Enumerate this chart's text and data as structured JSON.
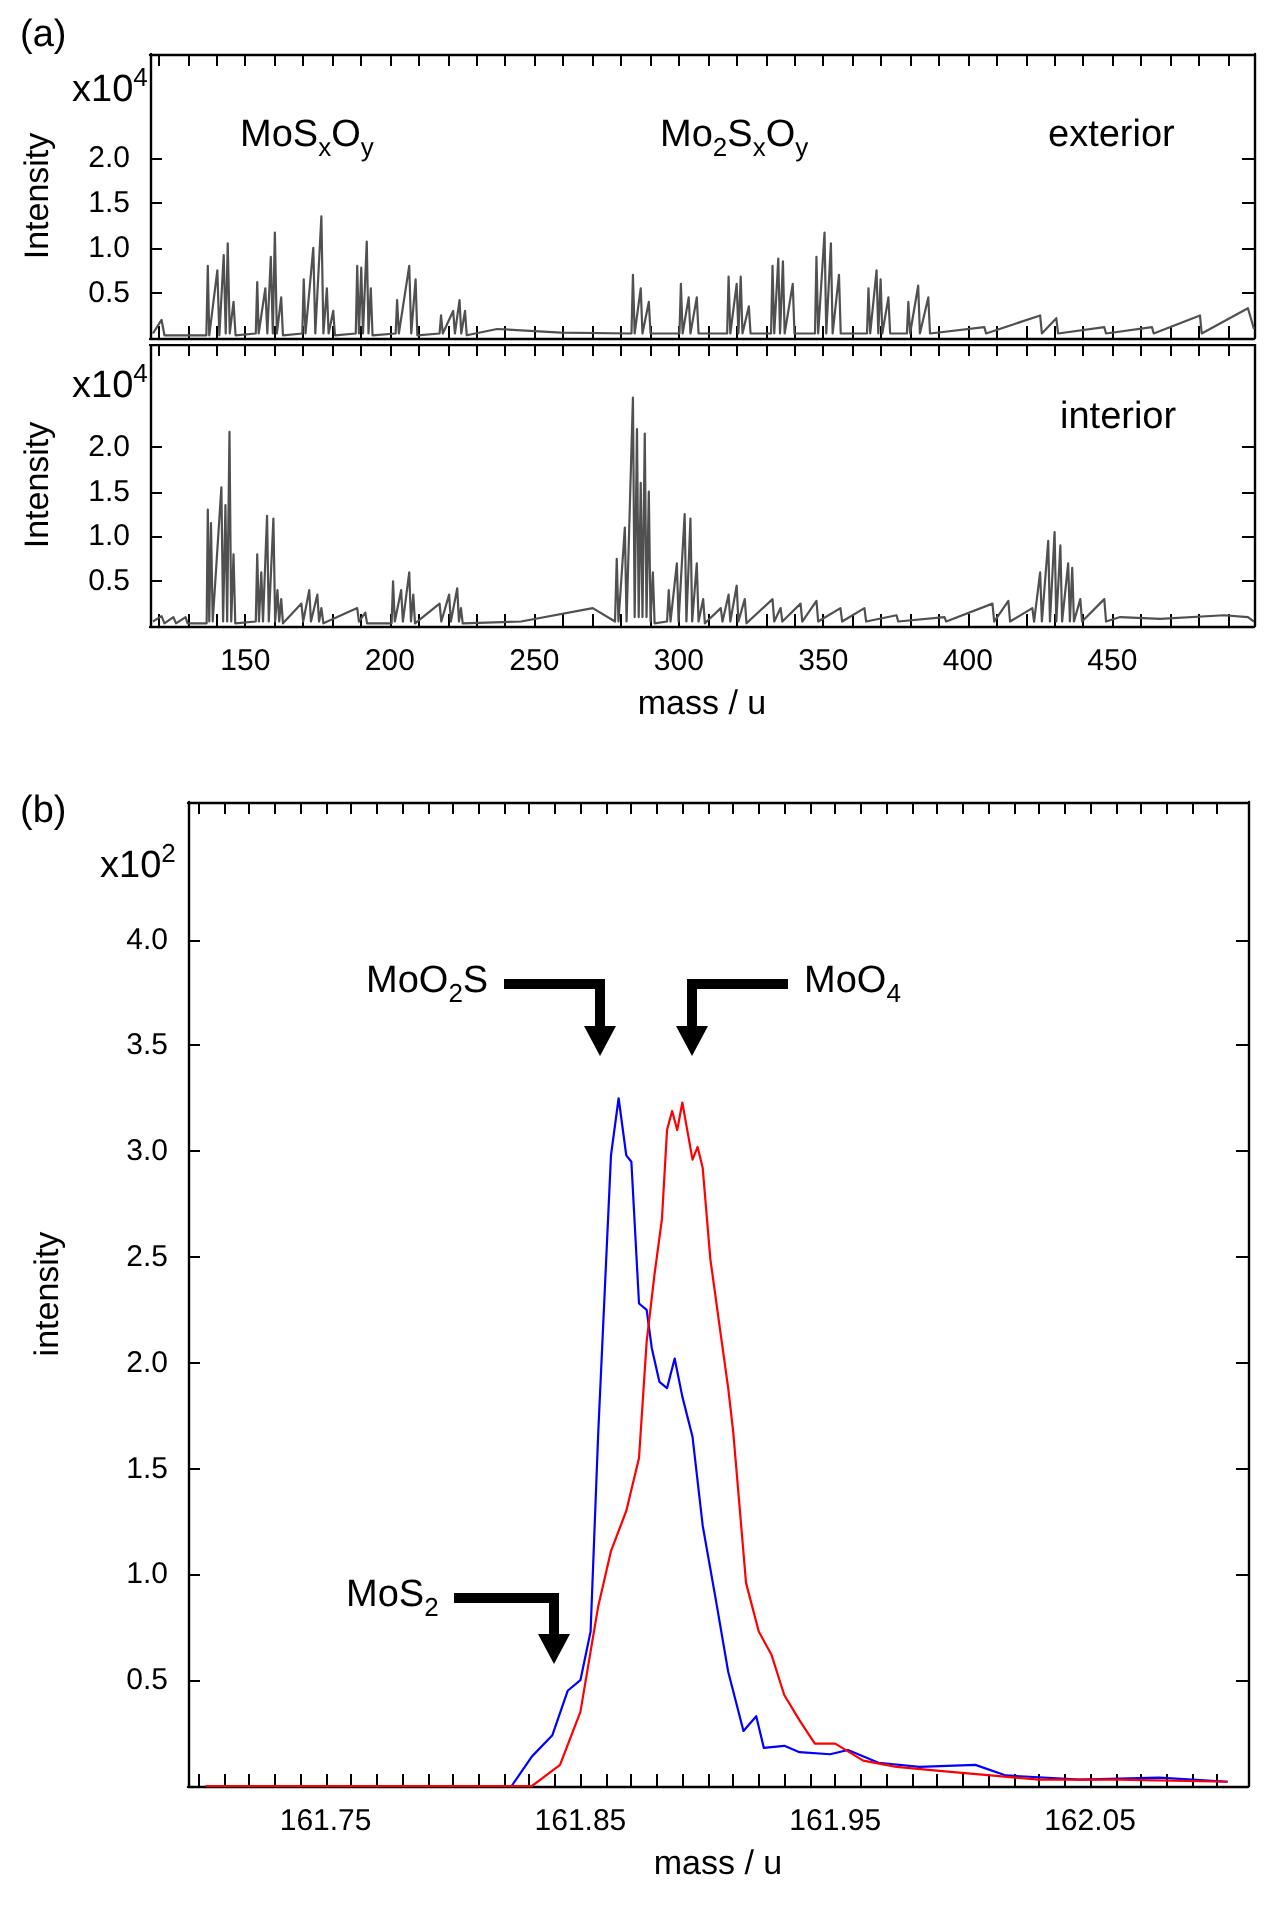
{
  "chart_data": [
    {
      "type": "line",
      "ylabel": "Intensity",
      "tick_labels": "y",
      "xlim": [
        117,
        499
      ],
      "ylim": [
        0,
        3.15
      ],
      "xticks": [
        {
          "value": 120,
          "label": null
        },
        {
          "value": 130,
          "label": null
        },
        {
          "value": 140,
          "label": null
        },
        150,
        {
          "value": 160,
          "label": null
        },
        {
          "value": 170,
          "label": null
        },
        {
          "value": 180,
          "label": null
        },
        {
          "value": 190,
          "label": null
        },
        200,
        {
          "value": 210,
          "label": null
        },
        {
          "value": 220,
          "label": null
        },
        {
          "value": 230,
          "label": null
        },
        {
          "value": 240,
          "label": null
        },
        250,
        {
          "value": 260,
          "label": null
        },
        {
          "value": 270,
          "label": null
        },
        {
          "value": 280,
          "label": null
        },
        {
          "value": 290,
          "label": null
        },
        300,
        {
          "value": 310,
          "label": null
        },
        {
          "value": 320,
          "label": null
        },
        {
          "value": 330,
          "label": null
        },
        {
          "value": 340,
          "label": null
        },
        350,
        {
          "value": 360,
          "label": null
        },
        {
          "value": 370,
          "label": null
        },
        {
          "value": 380,
          "label": null
        },
        {
          "value": 390,
          "label": null
        },
        400,
        {
          "value": 410,
          "label": null
        },
        {
          "value": 420,
          "label": null
        },
        {
          "value": 430,
          "label": null
        },
        {
          "value": 440,
          "label": null
        },
        450,
        {
          "value": 460,
          "label": null
        },
        {
          "value": 470,
          "label": null
        },
        {
          "value": 480,
          "label": null
        },
        {
          "value": 490,
          "label": null
        }
      ],
      "yticks": [
        0.5,
        {
          "value": 1,
          "label": "1.0"
        },
        1.5,
        {
          "value": 2,
          "label": "2.0"
        }
      ],
      "annotations": [
        "(a)",
        "x10$^{4}$",
        "exterior",
        "MoS$_{x}$O$_{y}$",
        "Mo$_{2}$S$_{x}$O$_{y}$"
      ],
      "series": [
        {
          "color": "#505050",
          "x": [
            118,
            121,
            122,
            136.5,
            137,
            137.5,
            140.3,
            141,
            142.5,
            143.2,
            143.9,
            144.6,
            145.9,
            146.6,
            153.6,
            154.1,
            154.6,
            156.9,
            157.6,
            158.8,
            159.5,
            160.2,
            160.9,
            162.4,
            163,
            169.7,
            170.2,
            170.8,
            173.5,
            174.2,
            176.3,
            177,
            178.2,
            178.8,
            180.4,
            181,
            188.2,
            188.7,
            189.3,
            190.1,
            190.7,
            192,
            192.6,
            193.4,
            194,
            202,
            202.5,
            203.1,
            206.7,
            207.4,
            208.9,
            209.5,
            217.2,
            217.7,
            218.3,
            221.9,
            222.5,
            224.1,
            224.7,
            226,
            226.6,
            237.1,
            259.2,
            283.6,
            284.1,
            284.7,
            286.8,
            287.4,
            289.6,
            290.2,
            300.2,
            300.7,
            301.3,
            303.4,
            304,
            306.2,
            306.8,
            316.7,
            317.2,
            317.8,
            320,
            320.6,
            321.4,
            322,
            324.2,
            324.8,
            331.9,
            332.4,
            333,
            334.4,
            335,
            336,
            336.6,
            339.4,
            340,
            347.1,
            347.6,
            348.2,
            350.4,
            351,
            352.6,
            353.2,
            355.4,
            356,
            365.1,
            365.6,
            366.2,
            368.4,
            369,
            369.8,
            370.4,
            372.5,
            373.1,
            378.9,
            379.4,
            380,
            382.8,
            383.4,
            386.3,
            386.9,
            405.7,
            406.3,
            425,
            425.6,
            430.6,
            431.2,
            447.2,
            447.8,
            463.7,
            464.3,
            480.3,
            480.9,
            496.9,
            499
          ],
          "values": [
            0.05,
            0.2,
            0.03,
            0.03,
            0.8,
            0.03,
            0.75,
            0.03,
            0.92,
            0.05,
            1.05,
            0.05,
            0.4,
            0.03,
            0.05,
            0.62,
            0.05,
            0.55,
            0.05,
            0.9,
            0.05,
            1.17,
            0.05,
            0.45,
            0.03,
            0.05,
            0.65,
            0.05,
            1,
            0.05,
            1.35,
            0.05,
            0.55,
            0.05,
            0.3,
            0.03,
            0.05,
            0.8,
            0.05,
            0.78,
            0.05,
            1.07,
            0.05,
            0.55,
            0.03,
            0.05,
            0.42,
            0.05,
            0.8,
            0.05,
            0.65,
            0.03,
            0.05,
            0.25,
            0.05,
            0.3,
            0.05,
            0.42,
            0.05,
            0.3,
            0.03,
            0.1,
            0.06,
            0.05,
            0.7,
            0.05,
            0.55,
            0.05,
            0.4,
            0.05,
            0.05,
            0.6,
            0.05,
            0.45,
            0.05,
            0.45,
            0.05,
            0.05,
            0.68,
            0.05,
            0.6,
            0.05,
            0.68,
            0.05,
            0.35,
            0.05,
            0.05,
            0.8,
            0.05,
            0.88,
            0.05,
            0.85,
            0.05,
            0.6,
            0.05,
            0.05,
            0.9,
            0.05,
            1.17,
            0.05,
            1.05,
            0.05,
            0.7,
            0.05,
            0.05,
            0.55,
            0.05,
            0.75,
            0.05,
            0.65,
            0.05,
            0.45,
            0.05,
            0.05,
            0.4,
            0.05,
            0.58,
            0.05,
            0.45,
            0.05,
            0.12,
            0.05,
            0.25,
            0.05,
            0.22,
            0.05,
            0.12,
            0.05,
            0.12,
            0.05,
            0.25,
            0.05,
            0.33,
            0.1
          ]
        }
      ]
    },
    {
      "type": "line",
      "ylabel": "Intensity",
      "xlabel": "mass / u",
      "xlim": [
        117,
        499
      ],
      "ylim": [
        0,
        3.15
      ],
      "xticks": [
        {
          "value": 120,
          "label": null
        },
        {
          "value": 130,
          "label": null
        },
        {
          "value": 140,
          "label": null
        },
        150,
        {
          "value": 160,
          "label": null
        },
        {
          "value": 170,
          "label": null
        },
        {
          "value": 180,
          "label": null
        },
        {
          "value": 190,
          "label": null
        },
        200,
        {
          "value": 210,
          "label": null
        },
        {
          "value": 220,
          "label": null
        },
        {
          "value": 230,
          "label": null
        },
        {
          "value": 240,
          "label": null
        },
        250,
        {
          "value": 260,
          "label": null
        },
        {
          "value": 270,
          "label": null
        },
        {
          "value": 280,
          "label": null
        },
        {
          "value": 290,
          "label": null
        },
        300,
        {
          "value": 310,
          "label": null
        },
        {
          "value": 320,
          "label": null
        },
        {
          "value": 330,
          "label": null
        },
        {
          "value": 340,
          "label": null
        },
        350,
        {
          "value": 360,
          "label": null
        },
        {
          "value": 370,
          "label": null
        },
        {
          "value": 380,
          "label": null
        },
        {
          "value": 390,
          "label": null
        },
        400,
        {
          "value": 410,
          "label": null
        },
        {
          "value": 420,
          "label": null
        },
        {
          "value": 430,
          "label": null
        },
        {
          "value": 440,
          "label": null
        },
        450,
        {
          "value": 460,
          "label": null
        },
        {
          "value": 470,
          "label": null
        },
        {
          "value": 480,
          "label": null
        },
        {
          "value": 490,
          "label": null
        }
      ],
      "yticks": [
        0.5,
        {
          "value": 1,
          "label": "1.0"
        },
        1.5,
        {
          "value": 2,
          "label": "2.0"
        }
      ],
      "annotations": [
        "x10$^{4}$",
        "interior"
      ],
      "series": [
        {
          "color": "#505050",
          "x": [
            118,
            121,
            122,
            125.1,
            126,
            129.3,
            130,
            136.6,
            137,
            137.5,
            138.1,
            138.7,
            141.7,
            142.3,
            143.1,
            143.7,
            144.5,
            145.1,
            145.9,
            146.5,
            153.6,
            154.1,
            154.7,
            155.5,
            156.1,
            157.5,
            158.1,
            159.7,
            160.3,
            161.1,
            161.7,
            162.4,
            163,
            169.4,
            170,
            172.1,
            172.7,
            174.9,
            175.5,
            176.3,
            177,
            188.7,
            189.3,
            191.5,
            192.1,
            200.6,
            201.1,
            201.7,
            203.9,
            204.5,
            206.7,
            207.3,
            208.1,
            208.7,
            217.2,
            217.8,
            220.5,
            221.1,
            223.3,
            223.9,
            224.6,
            225.2,
            245.4,
            270.2,
            277.9,
            278.5,
            279.1,
            281.3,
            281.9,
            284.1,
            284.7,
            285.5,
            286.1,
            286.8,
            287.4,
            288.2,
            288.8,
            289.6,
            290.2,
            291,
            291.6,
            295.9,
            296.5,
            297.1,
            299.3,
            299.9,
            302,
            302.6,
            304,
            304.6,
            306.2,
            306.8,
            308.4,
            309,
            314.5,
            315.1,
            317.2,
            317.8,
            320,
            320.6,
            322.8,
            323.4,
            332.4,
            333,
            335.2,
            335.8,
            342.1,
            342.7,
            347.6,
            348.2,
            355.9,
            356.5,
            364.2,
            364.8,
            375.3,
            375.9,
            391.9,
            392.5,
            408.5,
            409.1,
            414,
            414.6,
            422.3,
            422.9,
            425,
            425.6,
            427.8,
            428.4,
            430,
            430.6,
            432,
            432.6,
            434.7,
            435.3,
            436.1,
            436.7,
            438.9,
            439.5,
            447.2,
            447.8,
            452.7,
            466.5,
            488.6,
            496.9,
            499
          ],
          "values": [
            0.05,
            0.11,
            0.03,
            0.1,
            0.03,
            0.1,
            0.03,
            0.03,
            1.3,
            0.05,
            1.15,
            0.05,
            1.55,
            0.05,
            1.35,
            0.05,
            2.17,
            0.05,
            0.8,
            0.03,
            0.05,
            0.8,
            0.05,
            0.6,
            0.05,
            1.23,
            0.05,
            1.2,
            0.05,
            0.4,
            0.05,
            0.3,
            0.03,
            0.25,
            0.05,
            0.4,
            0.05,
            0.35,
            0.05,
            0.2,
            0.03,
            0.2,
            0.05,
            0.15,
            0.03,
            0.03,
            0.5,
            0.05,
            0.4,
            0.05,
            0.6,
            0.05,
            0.35,
            0.03,
            0.25,
            0.05,
            0.35,
            0.05,
            0.42,
            0.05,
            0.2,
            0.03,
            0.05,
            0.2,
            0.05,
            0.75,
            0.05,
            1.1,
            0.05,
            2.55,
            0.1,
            2.2,
            0.1,
            1.6,
            0.1,
            2.15,
            0.1,
            1.5,
            0.05,
            0.6,
            0.03,
            0.05,
            0.4,
            0.05,
            0.7,
            0.05,
            1.25,
            0.05,
            1.2,
            0.05,
            0.7,
            0.05,
            0.3,
            0.03,
            0.2,
            0.05,
            0.35,
            0.05,
            0.45,
            0.05,
            0.3,
            0.03,
            0.3,
            0.05,
            0.2,
            0.05,
            0.25,
            0.05,
            0.28,
            0.05,
            0.2,
            0.05,
            0.2,
            0.05,
            0.12,
            0.05,
            0.1,
            0.05,
            0.25,
            0.05,
            0.28,
            0.05,
            0.2,
            0.05,
            0.6,
            0.05,
            0.95,
            0.05,
            1.05,
            0.05,
            0.9,
            0.05,
            0.7,
            0.05,
            0.65,
            0.05,
            0.3,
            0.05,
            0.3,
            0.05,
            0.1,
            0.08,
            0.12,
            0.1,
            0.05
          ]
        }
      ]
    },
    {
      "type": "line",
      "ylabel": "intensity",
      "xlabel": "mass / u",
      "xlim": [
        161.696,
        162.112
      ],
      "ylim": [
        0,
        4.65
      ],
      "xticks": [
        {
          "value": 161.7,
          "label": null
        },
        {
          "value": 161.71,
          "label": null
        },
        {
          "value": 161.72,
          "label": null
        },
        {
          "value": 161.73,
          "label": null
        },
        {
          "value": 161.74,
          "label": null
        },
        161.75,
        {
          "value": 161.76,
          "label": null
        },
        {
          "value": 161.77,
          "label": null
        },
        {
          "value": 161.78,
          "label": null
        },
        {
          "value": 161.79,
          "label": null
        },
        {
          "value": 161.8,
          "label": null
        },
        {
          "value": 161.81,
          "label": null
        },
        {
          "value": 161.82,
          "label": null
        },
        {
          "value": 161.83,
          "label": null
        },
        {
          "value": 161.84,
          "label": null
        },
        161.85,
        {
          "value": 161.86,
          "label": null
        },
        {
          "value": 161.87,
          "label": null
        },
        {
          "value": 161.88,
          "label": null
        },
        {
          "value": 161.89,
          "label": null
        },
        {
          "value": 161.9,
          "label": null
        },
        {
          "value": 161.91,
          "label": null
        },
        {
          "value": 161.92,
          "label": null
        },
        {
          "value": 161.93,
          "label": null
        },
        {
          "value": 161.94,
          "label": null
        },
        161.95,
        {
          "value": 161.96,
          "label": null
        },
        {
          "value": 161.97,
          "label": null
        },
        {
          "value": 161.98,
          "label": null
        },
        {
          "value": 161.99,
          "label": null
        },
        {
          "value": 162,
          "label": null
        },
        {
          "value": 162.01,
          "label": null
        },
        {
          "value": 162.02,
          "label": null
        },
        {
          "value": 162.03,
          "label": null
        },
        {
          "value": 162.04,
          "label": null
        },
        162.05,
        {
          "value": 162.06,
          "label": null
        },
        {
          "value": 162.07,
          "label": null
        },
        {
          "value": 162.08,
          "label": null
        },
        {
          "value": 162.09,
          "label": null
        },
        {
          "value": 162.1,
          "label": null
        }
      ],
      "yticks": [
        0.5,
        {
          "value": 1,
          "label": "1.0"
        },
        1.5,
        {
          "value": 2,
          "label": "2.0"
        },
        2.5,
        {
          "value": 3,
          "label": "3.0"
        },
        3.5,
        {
          "value": 4,
          "label": "4.0"
        }
      ],
      "annotations": [
        "(b)",
        "x10$^{2}$",
        "MoO$_{2}$S",
        "MoO$_{4}$",
        "MoS$_{2}$"
      ],
      "series": [
        {
          "color": "#0000ff",
          "x": [
            161.703,
            161.823,
            161.831,
            161.839,
            161.845,
            161.85,
            161.854,
            161.857,
            161.862,
            161.865,
            161.868,
            161.87,
            161.873,
            161.876,
            161.878,
            161.881,
            161.884,
            161.887,
            161.89,
            161.894,
            161.898,
            161.903,
            161.908,
            161.914,
            161.919,
            161.922,
            161.93,
            161.936,
            161.948,
            161.955,
            161.967,
            161.983,
            162.005,
            162.017,
            162.046,
            162.077,
            162.104
          ],
          "values": [
            0,
            0,
            0.14,
            0.24,
            0.45,
            0.5,
            0.73,
            1.67,
            2.98,
            3.25,
            2.98,
            2.95,
            2.28,
            2.25,
            2.07,
            1.91,
            1.88,
            2.02,
            1.84,
            1.65,
            1.23,
            0.89,
            0.54,
            0.26,
            0.33,
            0.18,
            0.19,
            0.16,
            0.15,
            0.17,
            0.11,
            0.09,
            0.1,
            0.05,
            0.03,
            0.04,
            0.02
          ]
        },
        {
          "color": "#ff0000",
          "x": [
            161.703,
            161.831,
            161.842,
            161.85,
            161.857,
            161.862,
            161.868,
            161.873,
            161.876,
            161.879,
            161.882,
            161.884,
            161.886,
            161.888,
            161.89,
            161.894,
            161.896,
            161.898,
            161.901,
            161.905,
            161.908,
            161.91,
            161.915,
            161.92,
            161.925,
            161.93,
            161.936,
            161.942,
            161.95,
            161.961,
            161.974,
            161.992,
            162.011,
            162.03,
            162.061,
            162.104
          ],
          "values": [
            0,
            0,
            0.1,
            0.35,
            0.85,
            1.11,
            1.3,
            1.55,
            2.1,
            2.41,
            2.68,
            3.1,
            3.19,
            3.1,
            3.23,
            2.96,
            3.02,
            2.92,
            2.49,
            2.14,
            1.88,
            1.67,
            0.96,
            0.73,
            0.62,
            0.43,
            0.31,
            0.2,
            0.2,
            0.12,
            0.09,
            0.07,
            0.05,
            0.03,
            0.03,
            0.02
          ]
        }
      ]
    }
  ]
}
